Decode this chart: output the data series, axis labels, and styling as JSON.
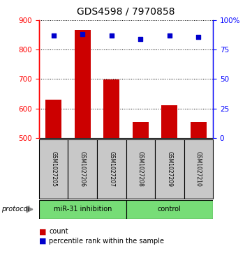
{
  "title": "GDS4598 / 7970858",
  "samples": [
    "GSM1027205",
    "GSM1027206",
    "GSM1027207",
    "GSM1027208",
    "GSM1027209",
    "GSM1027210"
  ],
  "counts": [
    630,
    868,
    698,
    553,
    612,
    555
  ],
  "percentile_ranks": [
    87,
    88,
    87,
    84,
    87,
    86
  ],
  "ylim_left": [
    500,
    900
  ],
  "ylim_right": [
    0,
    100
  ],
  "yticks_left": [
    500,
    600,
    700,
    800,
    900
  ],
  "yticks_right": [
    0,
    25,
    50,
    75,
    100
  ],
  "ytick_labels_right": [
    "0",
    "25",
    "50",
    "75",
    "100%"
  ],
  "bar_color": "#cc0000",
  "dot_color": "#0000cc",
  "legend_count_label": "count",
  "legend_percentile_label": "percentile rank within the sample",
  "bar_width": 0.55,
  "label_area_color": "#c8c8c8",
  "group_color": "#77dd77",
  "title_fontsize": 10,
  "tick_fontsize": 7.5,
  "sample_fontsize": 5.5,
  "group_fontsize": 7,
  "legend_fontsize": 7
}
